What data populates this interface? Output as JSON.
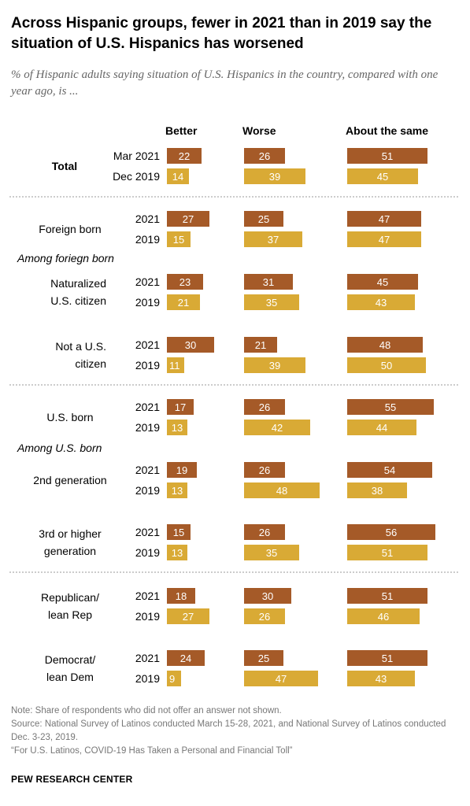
{
  "title": "Across Hispanic groups, fewer in 2021 than in 2019 say the situation of U.S. Hispanics has worsened",
  "subtitle": "% of Hispanic adults saying situation of U.S. Hispanics in the country, compared with one year ago, is ...",
  "chart_data": {
    "type": "bar",
    "orientation": "horizontal",
    "columns": [
      "Better",
      "Worse",
      "About the same"
    ],
    "colors": {
      "recent": "#A55A28",
      "earlier": "#D9AA35",
      "divider": "#999999"
    },
    "groups": [
      {
        "label": "Total",
        "bold": true,
        "rows": [
          {
            "year": "Mar 2021",
            "period": "recent",
            "values": [
              22,
              26,
              51
            ]
          },
          {
            "year": "Dec 2019",
            "period": "earlier",
            "values": [
              14,
              39,
              45
            ]
          }
        ]
      },
      {
        "divider": true
      },
      {
        "label": "Foreign born",
        "rows": [
          {
            "year": "2021",
            "period": "recent",
            "values": [
              27,
              25,
              47
            ]
          },
          {
            "year": "2019",
            "period": "earlier",
            "values": [
              15,
              37,
              47
            ]
          }
        ]
      },
      {
        "subheading": "Among foriegn born"
      },
      {
        "label": "Naturalized U.S. citizen",
        "rows": [
          {
            "year": "2021",
            "period": "recent",
            "values": [
              23,
              31,
              45
            ]
          },
          {
            "year": "2019",
            "period": "earlier",
            "values": [
              21,
              35,
              43
            ]
          }
        ]
      },
      {
        "label": "Not a U.S. citizen",
        "rows": [
          {
            "year": "2021",
            "period": "recent",
            "values": [
              30,
              21,
              48
            ]
          },
          {
            "year": "2019",
            "period": "earlier",
            "values": [
              11,
              39,
              50
            ]
          }
        ]
      },
      {
        "divider": true
      },
      {
        "label": "U.S. born",
        "rows": [
          {
            "year": "2021",
            "period": "recent",
            "values": [
              17,
              26,
              55
            ]
          },
          {
            "year": "2019",
            "period": "earlier",
            "values": [
              13,
              42,
              44
            ]
          }
        ]
      },
      {
        "subheading": "Among U.S. born"
      },
      {
        "label": "2nd generation",
        "rows": [
          {
            "year": "2021",
            "period": "recent",
            "values": [
              19,
              26,
              54
            ]
          },
          {
            "year": "2019",
            "period": "earlier",
            "values": [
              13,
              48,
              38
            ]
          }
        ]
      },
      {
        "label": "3rd or higher generation",
        "rows": [
          {
            "year": "2021",
            "period": "recent",
            "values": [
              15,
              26,
              56
            ]
          },
          {
            "year": "2019",
            "period": "earlier",
            "values": [
              13,
              35,
              51
            ]
          }
        ]
      },
      {
        "divider": true
      },
      {
        "label": "Republican/ lean Rep",
        "rows": [
          {
            "year": "2021",
            "period": "recent",
            "values": [
              18,
              30,
              51
            ]
          },
          {
            "year": "2019",
            "period": "earlier",
            "values": [
              27,
              26,
              46
            ]
          }
        ]
      },
      {
        "label": "Democrat/ lean Dem",
        "rows": [
          {
            "year": "2021",
            "period": "recent",
            "values": [
              24,
              25,
              51
            ]
          },
          {
            "year": "2019",
            "period": "earlier",
            "values": [
              9,
              47,
              43
            ]
          }
        ]
      }
    ]
  },
  "notes": {
    "note": "Note: Share of respondents who did not offer an answer not shown.",
    "source": "Source: National Survey of Latinos conducted March 15-28, 2021, and National Survey of Latinos conducted Dec. 3-23, 2019.",
    "report": "“For U.S. Latinos, COVID-19 Has Taken a Personal and Financial Toll”"
  },
  "brand": "PEW RESEARCH CENTER"
}
